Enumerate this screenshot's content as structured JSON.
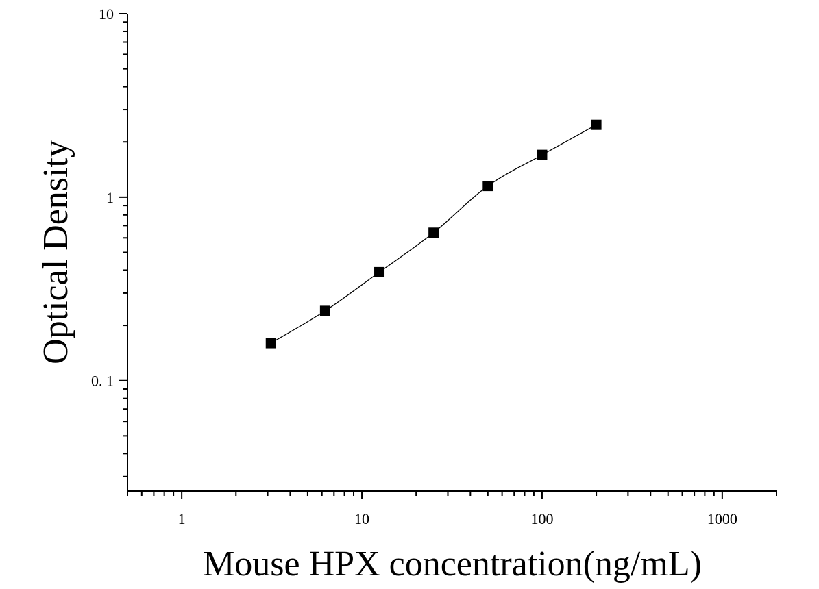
{
  "chart_data": {
    "type": "scatter",
    "xlabel": "Mouse HPX concentration(ng/mL)",
    "ylabel": "Optical Density",
    "x_scale": "log",
    "y_scale": "log",
    "xlim": [
      0.5,
      2000
    ],
    "ylim": [
      0.025,
      10
    ],
    "x_ticks": [
      {
        "value": 1,
        "label": "1"
      },
      {
        "value": 10,
        "label": "10"
      },
      {
        "value": 100,
        "label": "100"
      },
      {
        "value": 1000,
        "label": "1000"
      }
    ],
    "y_ticks": [
      {
        "value": 0.1,
        "label": "0. 1"
      },
      {
        "value": 1,
        "label": "1"
      },
      {
        "value": 10,
        "label": "10"
      }
    ],
    "series": [
      {
        "x": [
          3.125,
          6.25,
          12.5,
          25,
          50,
          100,
          200
        ],
        "y": [
          0.16,
          0.24,
          0.39,
          0.64,
          1.15,
          1.7,
          2.48
        ],
        "marker": "square",
        "fit_curve": true
      }
    ],
    "colors": {
      "marker": "#000000",
      "curve": "#000000",
      "axis": "#000000"
    },
    "grid": false,
    "legend": "none"
  }
}
